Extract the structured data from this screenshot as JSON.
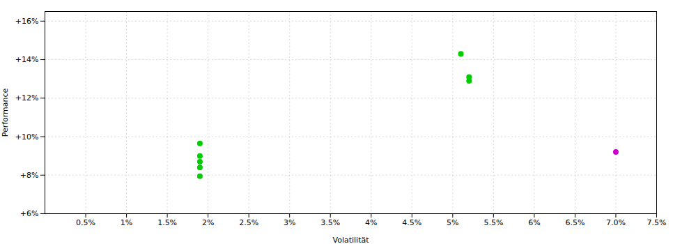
{
  "chart_data": {
    "type": "scatter",
    "xlabel": "Volatilität",
    "ylabel": "Performance",
    "series": [
      {
        "color": "#00cc00",
        "x": [
          0.019,
          0.019,
          0.019,
          0.019,
          0.019,
          0.051,
          0.052,
          0.052
        ],
        "values": [
          0.0965,
          0.09,
          0.087,
          0.084,
          0.0795,
          0.143,
          0.131,
          0.129
        ]
      },
      {
        "color": "#cc00cc",
        "x": [
          0.07
        ],
        "values": [
          0.092
        ]
      }
    ],
    "xlim": [
      0.0,
      0.075
    ],
    "ylim": [
      0.06,
      0.165
    ],
    "xticks": [
      {
        "value": 0.005,
        "label": "0.5%"
      },
      {
        "value": 0.01,
        "label": "1%"
      },
      {
        "value": 0.015,
        "label": "1.5%"
      },
      {
        "value": 0.02,
        "label": "2%"
      },
      {
        "value": 0.025,
        "label": "2.5%"
      },
      {
        "value": 0.03,
        "label": "3%"
      },
      {
        "value": 0.035,
        "label": "3.5%"
      },
      {
        "value": 0.04,
        "label": "4%"
      },
      {
        "value": 0.045,
        "label": "4.5%"
      },
      {
        "value": 0.05,
        "label": "5%"
      },
      {
        "value": 0.055,
        "label": "5.5%"
      },
      {
        "value": 0.06,
        "label": "6%"
      },
      {
        "value": 0.065,
        "label": "6.5%"
      },
      {
        "value": 0.07,
        "label": "7.0%"
      },
      {
        "value": 0.075,
        "label": "7.5%"
      }
    ],
    "yticks": [
      {
        "value": 0.06,
        "label": "+6%"
      },
      {
        "value": 0.08,
        "label": "+8%"
      },
      {
        "value": 0.1,
        "label": "+10%"
      },
      {
        "value": 0.12,
        "label": "+12%"
      },
      {
        "value": 0.14,
        "label": "+14%"
      },
      {
        "value": 0.16,
        "label": "+16%"
      }
    ],
    "grid": true
  }
}
